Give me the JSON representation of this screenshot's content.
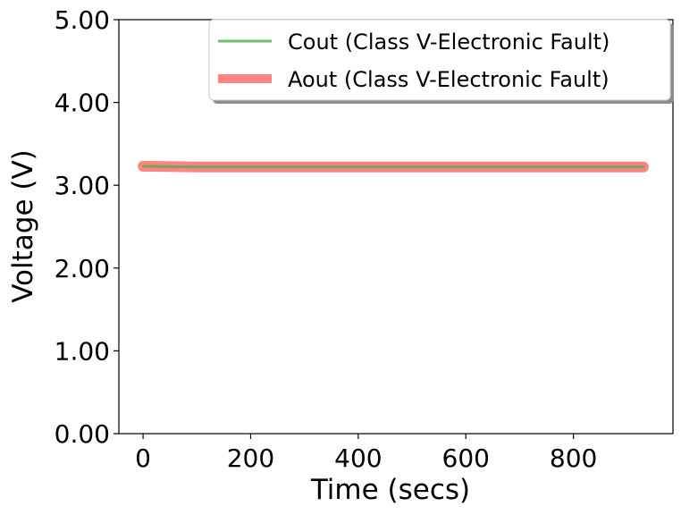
{
  "chart_data": {
    "type": "line",
    "title": "",
    "xlabel": "Time (secs)",
    "ylabel": "Voltage (V)",
    "xlim": [
      -45,
      985
    ],
    "ylim": [
      0,
      5
    ],
    "x_ticks": [
      0,
      200,
      400,
      600,
      800
    ],
    "x_tick_labels": [
      "0",
      "200",
      "400",
      "600",
      "800"
    ],
    "y_ticks": [
      0,
      1,
      2,
      3,
      4,
      5
    ],
    "y_tick_labels": [
      "0.00",
      "1.00",
      "2.00",
      "3.00",
      "4.00",
      "5.00"
    ],
    "grid": false,
    "legend": "top-right",
    "series": [
      {
        "name": "Cout (Class V-Electronic Fault)",
        "color": "#4caf50",
        "x": [
          0,
          100,
          200,
          300,
          400,
          500,
          600,
          700,
          800,
          930
        ],
        "values": [
          3.23,
          3.22,
          3.22,
          3.22,
          3.22,
          3.22,
          3.22,
          3.22,
          3.22,
          3.22
        ]
      },
      {
        "name": "Aout (Class V-Electronic Fault)",
        "color": "#ff6666",
        "x": [
          0,
          100,
          200,
          300,
          400,
          500,
          600,
          700,
          800,
          930
        ],
        "values": [
          3.23,
          3.22,
          3.22,
          3.22,
          3.22,
          3.22,
          3.22,
          3.22,
          3.22,
          3.22
        ]
      }
    ]
  }
}
